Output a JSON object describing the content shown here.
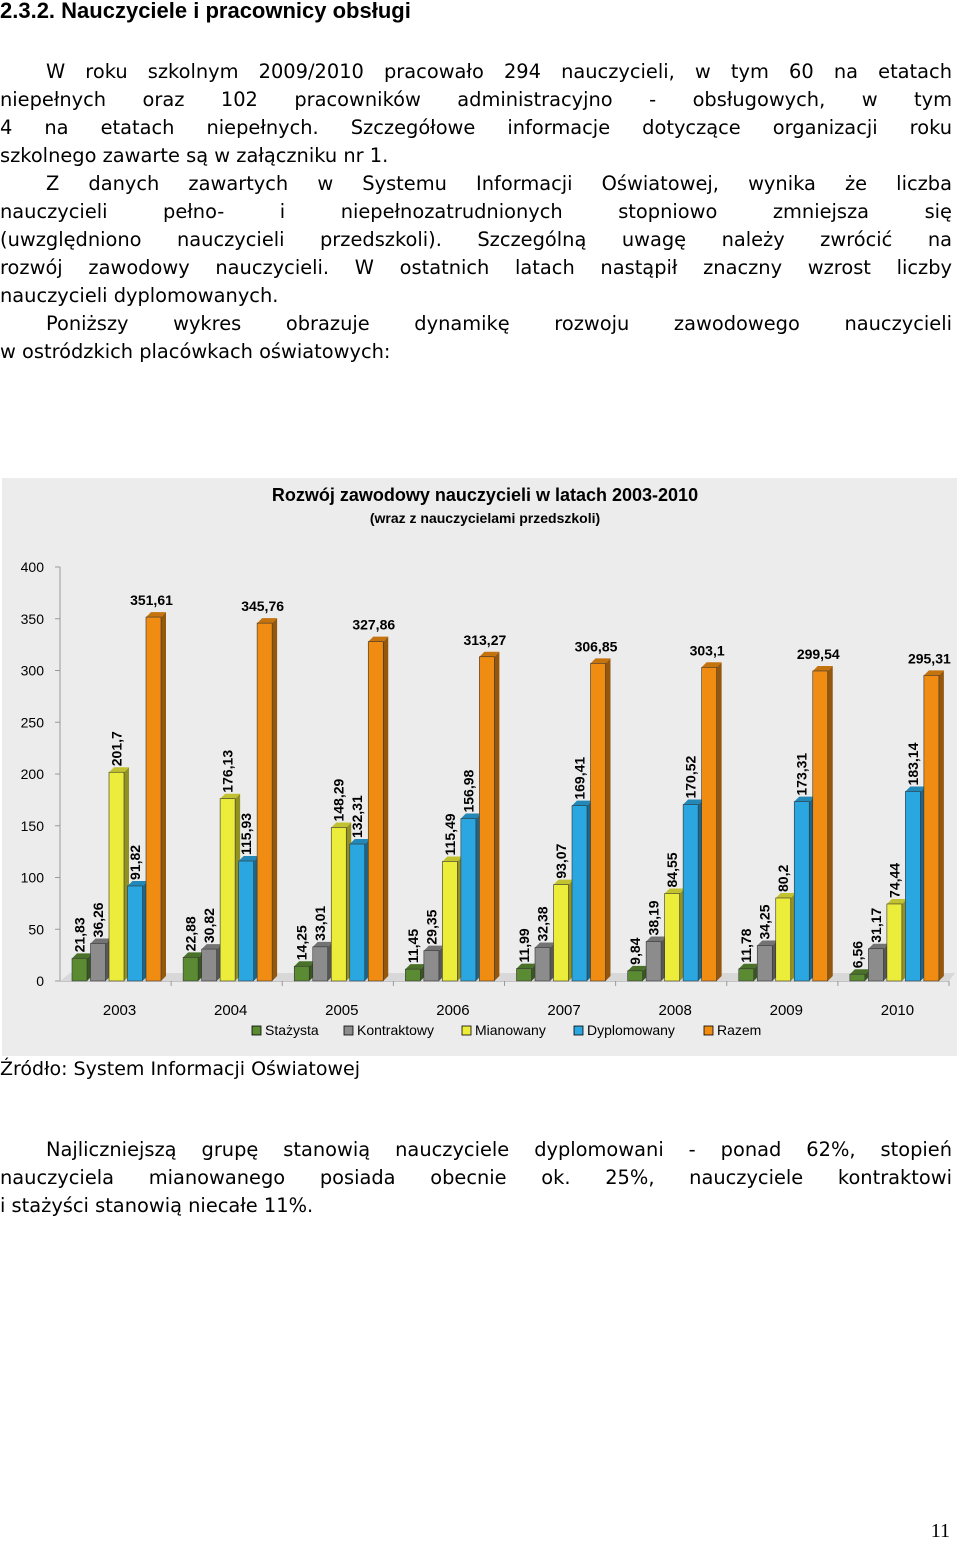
{
  "heading": "2.3.2. Nauczyciele i pracownicy obsługi",
  "paragraphs": [
    {
      "lines": [
        "W roku szkolnym 2009/2010 pracowało 294 nauczycieli, w tym 60 na etatach",
        "niepełnych oraz 102 pracowników administracyjno - obsługowych, w tym",
        "4 na etatach niepełnych. Szczegółowe informacje dotyczące organizacji roku",
        "szkolnego zawarte są w załączniku nr 1."
      ]
    },
    {
      "lines": [
        "Z danych zawartych w Systemu Informacji Oświatowej, wynika że liczba",
        "nauczycieli pełno- i niepełnozatrudnionych stopniowo zmniejsza się",
        "(uwzględniono nauczycieli przedszkoli). Szczególną uwagę należy zwrócić na",
        "rozwój zawodowy nauczycieli. W ostatnich latach nastąpił znaczny wzrost liczby",
        "nauczycieli dyplomowanych."
      ]
    },
    {
      "lines": [
        "Poniższy wykres obrazuje dynamikę rozwoju zawodowego nauczycieli",
        "w ostródzkich placówkach oświatowych:"
      ]
    }
  ],
  "chart_data": {
    "type": "bar",
    "title": "Rozwój zawodowy nauczycieli w latach 2003-2010",
    "subtitle": "(wraz z nauczycielami przedszkoli)",
    "categories": [
      "2003",
      "2004",
      "2005",
      "2006",
      "2007",
      "2008",
      "2009",
      "2010"
    ],
    "ylim": [
      0,
      400
    ],
    "yticks": [
      "0",
      "50",
      "100",
      "150",
      "200",
      "250",
      "300",
      "350",
      "400"
    ],
    "legend_position": "bottom",
    "grid": false,
    "bar_style": "3d",
    "series": [
      {
        "name": "Stażysta",
        "color": "#5a8a32",
        "values": [
          21.83,
          22.88,
          14.25,
          11.45,
          11.99,
          9.84,
          11.78,
          6.56
        ],
        "labels": [
          "21,83",
          "22,88",
          "14,25",
          "11,45",
          "11,99",
          "9,84",
          "11,78",
          "6,56"
        ]
      },
      {
        "name": "Kontraktowy",
        "color": "#8c8c8c",
        "values": [
          36.26,
          30.82,
          33.01,
          29.35,
          32.38,
          38.19,
          34.25,
          31.17
        ],
        "labels": [
          "36,26",
          "30,82",
          "33,01",
          "29,35",
          "32,38",
          "38,19",
          "34,25",
          "31,17"
        ]
      },
      {
        "name": "Mianowany",
        "color": "#ecec3a",
        "values": [
          201.7,
          176.13,
          148.29,
          115.49,
          93.07,
          84.55,
          80.2,
          74.44
        ],
        "labels": [
          "201,7",
          "176,13",
          "148,29",
          "115,49",
          "93,07",
          "84,55",
          "80,2",
          "74,44"
        ]
      },
      {
        "name": "Dyplomowany",
        "color": "#2aa6e0",
        "values": [
          91.82,
          115.93,
          132.31,
          156.98,
          169.41,
          170.52,
          173.31,
          183.14
        ],
        "labels": [
          "91,82",
          "115,93",
          "132,31",
          "156,98",
          "169,41",
          "170,52",
          "173,31",
          "183,14"
        ]
      },
      {
        "name": "Razem",
        "color": "#f08c12",
        "values": [
          351.61,
          345.76,
          327.86,
          313.27,
          306.85,
          303.1,
          299.54,
          295.31
        ],
        "labels": [
          "351,61",
          "345,76",
          "327,86",
          "313,27",
          "306,85",
          "303,1",
          "299,54",
          "295,31"
        ]
      }
    ]
  },
  "source": "Źródło: System Informacji Oświatowej",
  "closing": {
    "lines": [
      "Najliczniejszą grupę stanowią nauczyciele dyplomowani - ponad 62%, stopień",
      "nauczyciela mianowanego posiada obecnie ok. 25%, nauczyciele kontraktowi",
      "i stażyści stanowią niecałe 11%."
    ]
  },
  "page_number": "11"
}
